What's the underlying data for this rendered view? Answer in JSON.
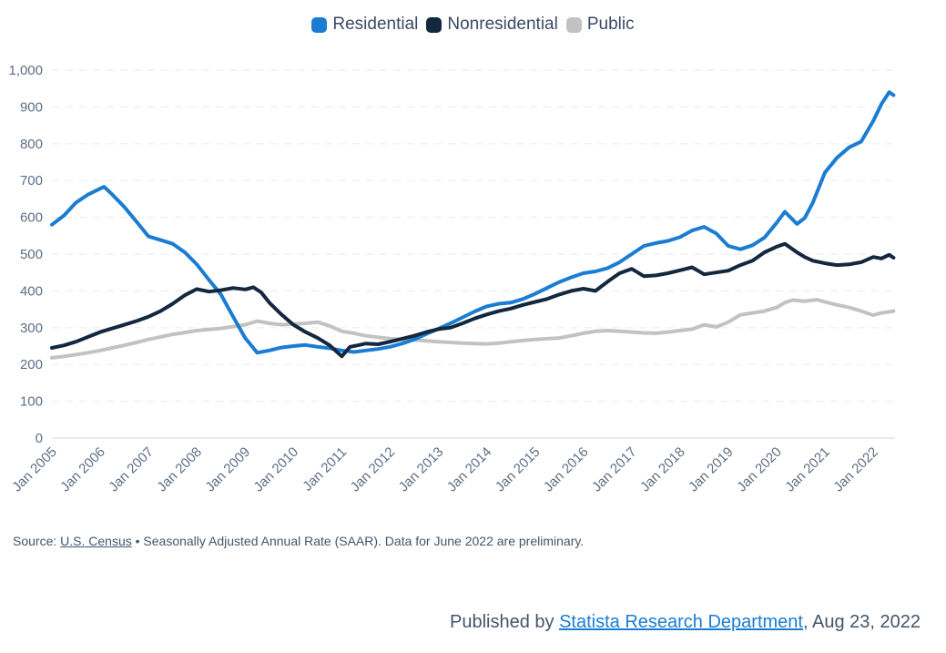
{
  "legend": {
    "items": [
      {
        "label": "Residential",
        "color": "#1a7dd2"
      },
      {
        "label": "Nonresidential",
        "color": "#13273f"
      },
      {
        "label": "Public",
        "color": "#c2c2c2"
      }
    ]
  },
  "chart_data": {
    "type": "line",
    "title": "",
    "xlabel": "",
    "ylabel": "",
    "ylim": [
      0,
      1000
    ],
    "y_ticks": [
      0,
      100,
      200,
      300,
      400,
      500,
      600,
      700,
      800,
      900,
      1000
    ],
    "y_tick_labels": [
      "0",
      "100",
      "200",
      "300",
      "400",
      "500",
      "600",
      "700",
      "800",
      "900",
      "1,000"
    ],
    "xlim": [
      2005.0,
      2022.45
    ],
    "x_tick_years": [
      2005,
      2006,
      2007,
      2008,
      2009,
      2010,
      2011,
      2012,
      2013,
      2014,
      2015,
      2016,
      2017,
      2018,
      2019,
      2020,
      2021,
      2022
    ],
    "x_tick_labels": [
      "Jan 2005",
      "Jan 2006",
      "Jan 2007",
      "Jan 2008",
      "Jan 2009",
      "Jan 2010",
      "Jan 2011",
      "Jan 2012",
      "Jan 2013",
      "Jan 2014",
      "Jan 2015",
      "Jan 2016",
      "Jan 2017",
      "Jan 2018",
      "Jan 2019",
      "Jan 2020",
      "Jan 2021",
      "Jan 2022"
    ],
    "grid": "horizontal-dashed",
    "legend_position": "top-center",
    "series": [
      {
        "name": "Public",
        "color": "#c2c2c2",
        "points": [
          [
            2005.0,
            218
          ],
          [
            2005.25,
            222
          ],
          [
            2005.5,
            227
          ],
          [
            2005.75,
            232
          ],
          [
            2006.0,
            238
          ],
          [
            2006.25,
            245
          ],
          [
            2006.5,
            252
          ],
          [
            2006.75,
            260
          ],
          [
            2007.0,
            268
          ],
          [
            2007.25,
            275
          ],
          [
            2007.5,
            282
          ],
          [
            2007.75,
            287
          ],
          [
            2008.0,
            292
          ],
          [
            2008.25,
            295
          ],
          [
            2008.5,
            298
          ],
          [
            2008.75,
            303
          ],
          [
            2009.0,
            308
          ],
          [
            2009.25,
            318
          ],
          [
            2009.5,
            312
          ],
          [
            2009.75,
            308
          ],
          [
            2010.0,
            310
          ],
          [
            2010.25,
            312
          ],
          [
            2010.5,
            315
          ],
          [
            2010.75,
            305
          ],
          [
            2011.0,
            290
          ],
          [
            2011.25,
            285
          ],
          [
            2011.5,
            278
          ],
          [
            2011.75,
            274
          ],
          [
            2012.0,
            270
          ],
          [
            2012.25,
            268
          ],
          [
            2012.5,
            267
          ],
          [
            2012.75,
            264
          ],
          [
            2013.0,
            262
          ],
          [
            2013.25,
            260
          ],
          [
            2013.5,
            258
          ],
          [
            2013.75,
            257
          ],
          [
            2014.0,
            256
          ],
          [
            2014.25,
            258
          ],
          [
            2014.5,
            262
          ],
          [
            2014.75,
            265
          ],
          [
            2015.0,
            268
          ],
          [
            2015.25,
            270
          ],
          [
            2015.5,
            272
          ],
          [
            2015.75,
            278
          ],
          [
            2016.0,
            285
          ],
          [
            2016.25,
            290
          ],
          [
            2016.5,
            292
          ],
          [
            2016.75,
            290
          ],
          [
            2017.0,
            288
          ],
          [
            2017.25,
            286
          ],
          [
            2017.5,
            285
          ],
          [
            2017.75,
            288
          ],
          [
            2018.0,
            292
          ],
          [
            2018.25,
            296
          ],
          [
            2018.5,
            308
          ],
          [
            2018.75,
            302
          ],
          [
            2019.0,
            315
          ],
          [
            2019.25,
            335
          ],
          [
            2019.5,
            340
          ],
          [
            2019.75,
            345
          ],
          [
            2020.0,
            355
          ],
          [
            2020.17,
            368
          ],
          [
            2020.33,
            375
          ],
          [
            2020.58,
            372
          ],
          [
            2020.83,
            376
          ],
          [
            2021.0,
            370
          ],
          [
            2021.25,
            362
          ],
          [
            2021.5,
            355
          ],
          [
            2021.75,
            345
          ],
          [
            2022.0,
            334
          ],
          [
            2022.17,
            340
          ],
          [
            2022.33,
            343
          ],
          [
            2022.42,
            345
          ]
        ]
      },
      {
        "name": "Residential",
        "color": "#1a7dd2",
        "points": [
          [
            2005.0,
            580
          ],
          [
            2005.25,
            605
          ],
          [
            2005.5,
            640
          ],
          [
            2005.75,
            662
          ],
          [
            2006.0,
            678
          ],
          [
            2006.08,
            683
          ],
          [
            2006.25,
            662
          ],
          [
            2006.5,
            628
          ],
          [
            2006.75,
            588
          ],
          [
            2007.0,
            548
          ],
          [
            2007.25,
            538
          ],
          [
            2007.5,
            528
          ],
          [
            2007.75,
            505
          ],
          [
            2008.0,
            472
          ],
          [
            2008.25,
            430
          ],
          [
            2008.5,
            390
          ],
          [
            2008.75,
            330
          ],
          [
            2009.0,
            272
          ],
          [
            2009.25,
            232
          ],
          [
            2009.5,
            238
          ],
          [
            2009.75,
            246
          ],
          [
            2010.0,
            250
          ],
          [
            2010.25,
            253
          ],
          [
            2010.5,
            248
          ],
          [
            2010.75,
            244
          ],
          [
            2011.0,
            238
          ],
          [
            2011.25,
            234
          ],
          [
            2011.5,
            238
          ],
          [
            2011.75,
            242
          ],
          [
            2012.0,
            248
          ],
          [
            2012.25,
            257
          ],
          [
            2012.5,
            268
          ],
          [
            2012.75,
            283
          ],
          [
            2013.0,
            297
          ],
          [
            2013.25,
            312
          ],
          [
            2013.5,
            328
          ],
          [
            2013.75,
            344
          ],
          [
            2014.0,
            358
          ],
          [
            2014.25,
            365
          ],
          [
            2014.5,
            368
          ],
          [
            2014.75,
            378
          ],
          [
            2015.0,
            392
          ],
          [
            2015.25,
            408
          ],
          [
            2015.5,
            424
          ],
          [
            2015.75,
            437
          ],
          [
            2016.0,
            448
          ],
          [
            2016.25,
            453
          ],
          [
            2016.5,
            462
          ],
          [
            2016.75,
            478
          ],
          [
            2017.0,
            500
          ],
          [
            2017.25,
            522
          ],
          [
            2017.5,
            530
          ],
          [
            2017.75,
            536
          ],
          [
            2018.0,
            546
          ],
          [
            2018.25,
            564
          ],
          [
            2018.5,
            574
          ],
          [
            2018.75,
            556
          ],
          [
            2019.0,
            522
          ],
          [
            2019.25,
            513
          ],
          [
            2019.5,
            524
          ],
          [
            2019.75,
            545
          ],
          [
            2020.0,
            585
          ],
          [
            2020.17,
            615
          ],
          [
            2020.42,
            582
          ],
          [
            2020.58,
            598
          ],
          [
            2020.75,
            640
          ],
          [
            2021.0,
            722
          ],
          [
            2021.25,
            762
          ],
          [
            2021.5,
            790
          ],
          [
            2021.75,
            806
          ],
          [
            2022.0,
            862
          ],
          [
            2022.17,
            908
          ],
          [
            2022.33,
            940
          ],
          [
            2022.42,
            932
          ]
        ]
      },
      {
        "name": "Nonresidential",
        "color": "#13273f",
        "points": [
          [
            2005.0,
            245
          ],
          [
            2005.25,
            252
          ],
          [
            2005.5,
            262
          ],
          [
            2005.75,
            275
          ],
          [
            2006.0,
            288
          ],
          [
            2006.25,
            298
          ],
          [
            2006.5,
            308
          ],
          [
            2006.75,
            318
          ],
          [
            2007.0,
            330
          ],
          [
            2007.25,
            345
          ],
          [
            2007.5,
            365
          ],
          [
            2007.75,
            388
          ],
          [
            2008.0,
            405
          ],
          [
            2008.25,
            398
          ],
          [
            2008.5,
            402
          ],
          [
            2008.75,
            408
          ],
          [
            2009.0,
            404
          ],
          [
            2009.17,
            410
          ],
          [
            2009.33,
            396
          ],
          [
            2009.5,
            368
          ],
          [
            2009.75,
            336
          ],
          [
            2010.0,
            308
          ],
          [
            2010.25,
            288
          ],
          [
            2010.5,
            272
          ],
          [
            2010.75,
            252
          ],
          [
            2011.0,
            222
          ],
          [
            2011.17,
            248
          ],
          [
            2011.33,
            252
          ],
          [
            2011.5,
            257
          ],
          [
            2011.75,
            255
          ],
          [
            2012.0,
            262
          ],
          [
            2012.25,
            270
          ],
          [
            2012.5,
            278
          ],
          [
            2012.75,
            288
          ],
          [
            2013.0,
            296
          ],
          [
            2013.25,
            300
          ],
          [
            2013.5,
            312
          ],
          [
            2013.75,
            325
          ],
          [
            2014.0,
            336
          ],
          [
            2014.25,
            345
          ],
          [
            2014.5,
            352
          ],
          [
            2014.75,
            362
          ],
          [
            2015.0,
            370
          ],
          [
            2015.25,
            378
          ],
          [
            2015.5,
            390
          ],
          [
            2015.75,
            400
          ],
          [
            2016.0,
            406
          ],
          [
            2016.25,
            400
          ],
          [
            2016.5,
            425
          ],
          [
            2016.75,
            448
          ],
          [
            2017.0,
            460
          ],
          [
            2017.25,
            440
          ],
          [
            2017.5,
            442
          ],
          [
            2017.75,
            448
          ],
          [
            2018.0,
            456
          ],
          [
            2018.25,
            464
          ],
          [
            2018.5,
            445
          ],
          [
            2018.75,
            450
          ],
          [
            2019.0,
            455
          ],
          [
            2019.25,
            470
          ],
          [
            2019.5,
            482
          ],
          [
            2019.75,
            505
          ],
          [
            2020.0,
            520
          ],
          [
            2020.17,
            528
          ],
          [
            2020.42,
            505
          ],
          [
            2020.58,
            492
          ],
          [
            2020.75,
            482
          ],
          [
            2021.0,
            475
          ],
          [
            2021.25,
            470
          ],
          [
            2021.5,
            472
          ],
          [
            2021.75,
            478
          ],
          [
            2022.0,
            492
          ],
          [
            2022.17,
            488
          ],
          [
            2022.33,
            498
          ],
          [
            2022.42,
            490
          ]
        ]
      }
    ]
  },
  "style": {
    "grid_color": "#efebeb",
    "baseline_color": "#e3e3e3",
    "axis_text_color": "#5e6e85",
    "line_width": 4
  },
  "source_line": {
    "label": "Source: ",
    "link": "U.S. Census",
    "note": " • Seasonally Adjusted Annual Rate (SAAR). Data for June 2022 are preliminary."
  },
  "published": {
    "prefix": "Published by ",
    "link": "Statista Research Department",
    "suffix": ", Aug 23, 2022"
  }
}
